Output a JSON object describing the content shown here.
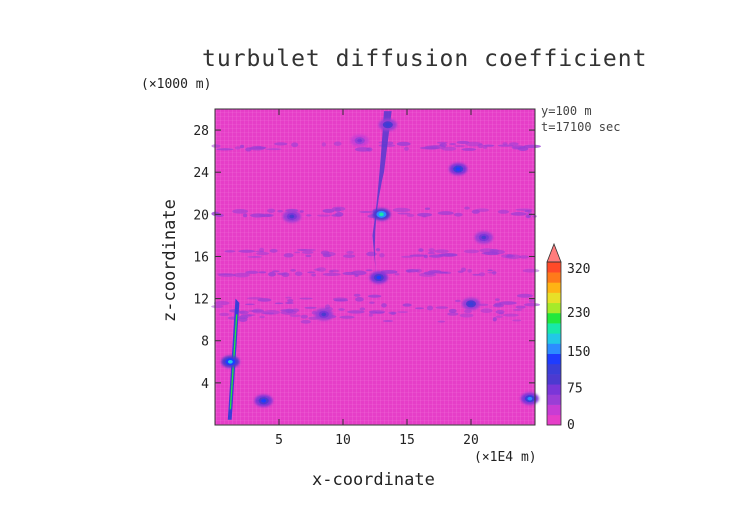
{
  "chart_data": {
    "type": "heatmap",
    "title": "turbulet diffusion coefficient",
    "xlabel": "x-coordinate",
    "ylabel": "z-coordinate",
    "x_unit": "(×1E4 m)",
    "y_unit": "(×1000 m)",
    "annotations": [
      "y=100 m",
      "t=17100 sec"
    ],
    "xlim": [
      0,
      25
    ],
    "ylim": [
      0,
      30
    ],
    "x_ticks": [
      5,
      10,
      15,
      20
    ],
    "y_ticks": [
      4,
      8,
      12,
      16,
      20,
      24,
      28
    ],
    "colorbar": {
      "tick_labels": [
        "0",
        "75",
        "150",
        "230",
        "320"
      ],
      "tick_values": [
        0,
        75,
        150,
        230,
        320
      ],
      "colors": [
        "#e63ec8",
        "#c83cd4",
        "#9a3ed6",
        "#7a36d8",
        "#4c3ad0",
        "#3a3ed8",
        "#1e3cff",
        "#2c8cff",
        "#22c8e6",
        "#18e8a8",
        "#22e83c",
        "#a6ea2a",
        "#e8e028",
        "#ffb414",
        "#ff7a1a",
        "#ff4a28",
        "#ff7c7c"
      ],
      "extend": "max"
    },
    "background_value_color": "#e63ec8",
    "features": [
      {
        "x": 1.2,
        "z": 6.0,
        "value": 180
      },
      {
        "x": 13.0,
        "z": 20.0,
        "value": 200
      },
      {
        "x": 12.8,
        "z": 14.0,
        "value": 120
      },
      {
        "x": 13.5,
        "z": 28.5,
        "value": 100
      },
      {
        "x": 20.0,
        "z": 11.5,
        "value": 100
      },
      {
        "x": 8.5,
        "z": 10.5,
        "value": 90
      },
      {
        "x": 24.6,
        "z": 2.5,
        "value": 150
      },
      {
        "x": 3.8,
        "z": 2.3,
        "value": 120
      },
      {
        "x": 11.3,
        "z": 27.0,
        "value": 70
      },
      {
        "x": 21.0,
        "z": 17.8,
        "value": 80
      },
      {
        "x": 19.0,
        "z": 24.3,
        "value": 130
      },
      {
        "x": 6.0,
        "z": 19.8,
        "value": 75
      }
    ]
  }
}
